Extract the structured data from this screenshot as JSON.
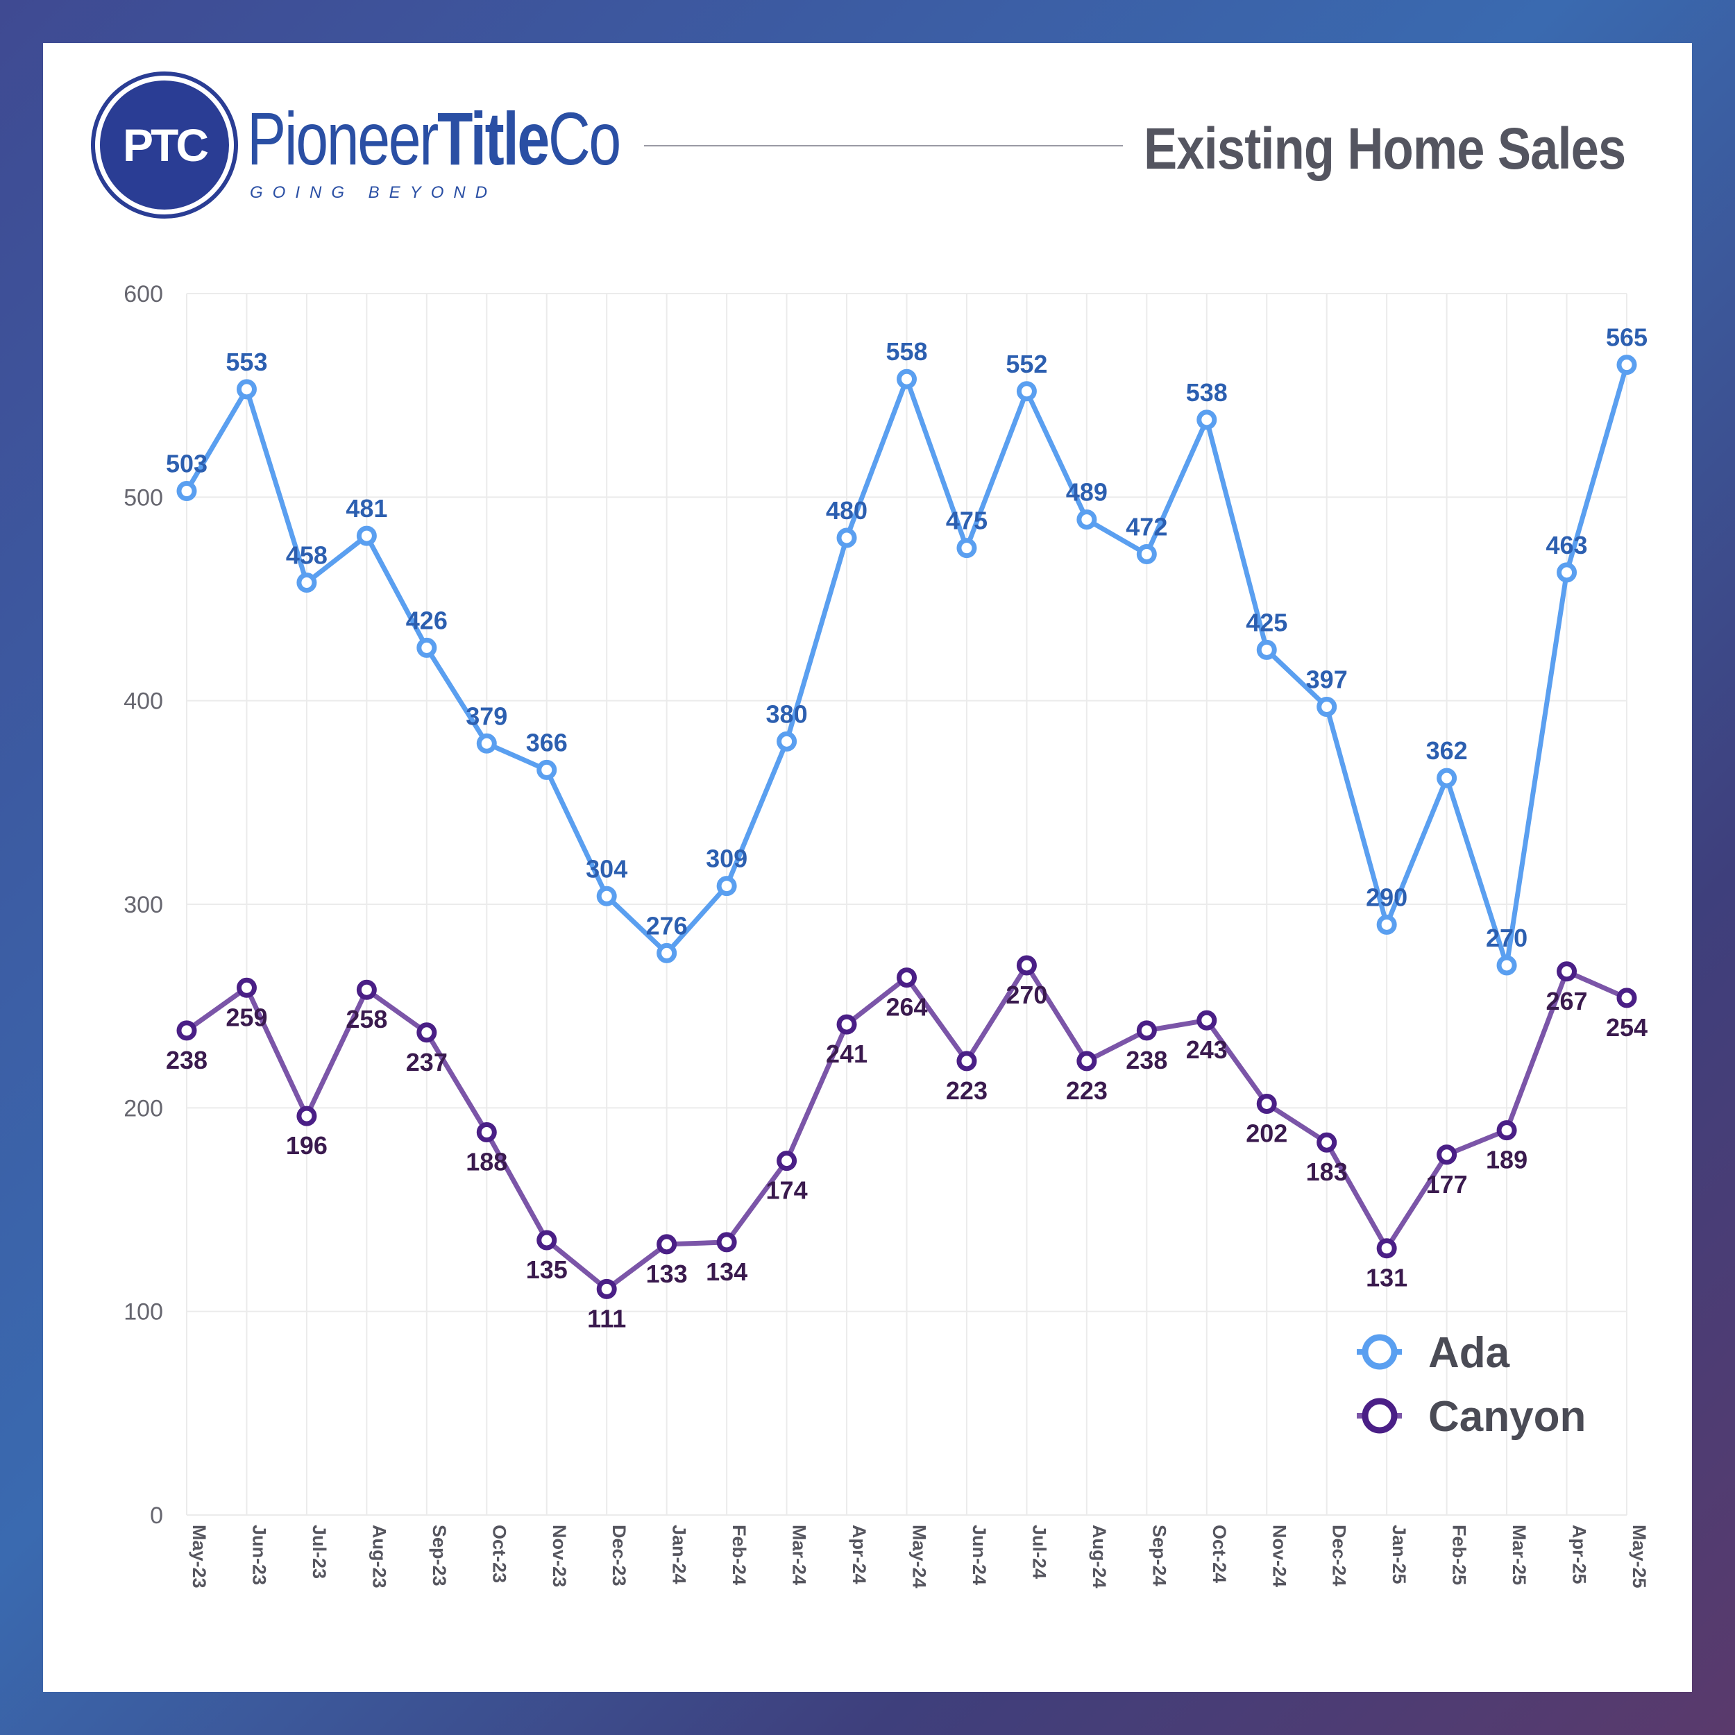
{
  "brand": {
    "mark": "PTC",
    "name_light": "Pioneer",
    "name_bold": "Title",
    "name_suffix": "Co",
    "tagline": "GOING BEYOND"
  },
  "header": {
    "title": "Existing Home Sales"
  },
  "colors": {
    "ada": "#5a9ff0",
    "canyon": "#7b55a8",
    "canyon_marker": "#4a1f86",
    "grid": "#ebebeb"
  },
  "chart_data": {
    "type": "line",
    "title": "Existing Home Sales",
    "xlabel": "",
    "ylabel": "",
    "ylim": [
      0,
      600
    ],
    "yticks": [
      0,
      100,
      200,
      300,
      400,
      500,
      600
    ],
    "grid": true,
    "legend_position": "bottom-right",
    "categories": [
      "May-23",
      "Jun-23",
      "Jul-23",
      "Aug-23",
      "Sep-23",
      "Oct-23",
      "Nov-23",
      "Dec-23",
      "Jan-24",
      "Feb-24",
      "Mar-24",
      "Apr-24",
      "May-24",
      "Jun-24",
      "Jul-24",
      "Aug-24",
      "Sep-24",
      "Oct-24",
      "Nov-24",
      "Dec-24",
      "Jan-25",
      "Feb-25",
      "Mar-25",
      "Apr-25",
      "May-25"
    ],
    "series": [
      {
        "name": "Ada",
        "values": [
          503,
          553,
          458,
          481,
          426,
          379,
          366,
          304,
          276,
          309,
          380,
          480,
          558,
          475,
          552,
          489,
          472,
          538,
          425,
          397,
          290,
          362,
          270,
          463,
          565
        ]
      },
      {
        "name": "Canyon",
        "values": [
          238,
          259,
          196,
          258,
          237,
          188,
          135,
          111,
          133,
          134,
          174,
          241,
          264,
          223,
          270,
          223,
          238,
          243,
          202,
          183,
          131,
          177,
          189,
          267,
          254
        ]
      }
    ]
  }
}
